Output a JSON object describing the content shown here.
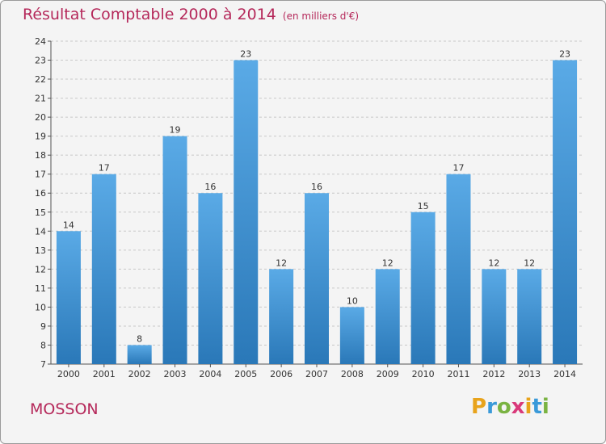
{
  "header": {
    "title": "Résultat Comptable 2000 à 2014",
    "unit": "(en milliers d'€)"
  },
  "footer": {
    "place": "MOSSON",
    "logo_letters": [
      "P",
      "r",
      "o",
      "x",
      "i",
      "t",
      "i"
    ],
    "logo_colors": [
      "#e8a31b",
      "#3a9ad9",
      "#7ab342",
      "#d93a7a",
      "#e8a31b",
      "#3a9ad9",
      "#7ab342"
    ]
  },
  "colors": {
    "bar_light": "#5aaae6",
    "bar_dark": "#2a78b8",
    "grid": "#c8c8c8",
    "title": "#b5285a"
  },
  "chart_data": {
    "type": "bar",
    "categories": [
      "2000",
      "2001",
      "2002",
      "2003",
      "2004",
      "2005",
      "2006",
      "2007",
      "2008",
      "2009",
      "2010",
      "2011",
      "2012",
      "2013",
      "2014"
    ],
    "values": [
      14,
      17,
      8,
      19,
      16,
      23,
      12,
      16,
      10,
      12,
      15,
      17,
      12,
      12,
      23
    ],
    "ylim": [
      7,
      24
    ],
    "yticks": [
      7,
      8,
      9,
      10,
      11,
      12,
      13,
      14,
      15,
      16,
      17,
      18,
      19,
      20,
      21,
      22,
      23,
      24
    ],
    "grid": true
  }
}
